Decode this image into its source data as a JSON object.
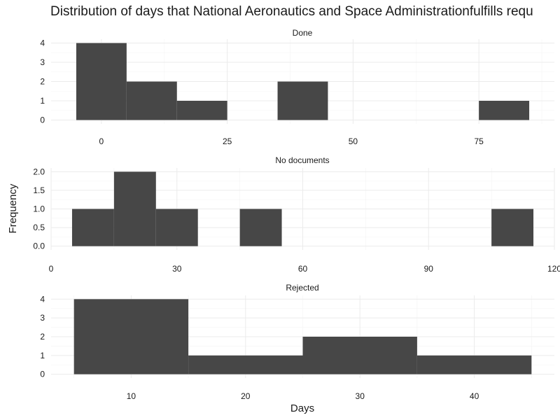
{
  "chart_data": {
    "type": "bar",
    "title": "Distribution of days that National Aeronautics and Space Administrationfulfills requ",
    "xlabel": "Days",
    "ylabel": "Frequency",
    "grid": true,
    "bar_color": "#474747",
    "panels": [
      {
        "name": "Done",
        "bin_width": 10,
        "bins": [
          {
            "x0": -5,
            "x1": 5,
            "count": 4
          },
          {
            "x0": 5,
            "x1": 15,
            "count": 2
          },
          {
            "x0": 15,
            "x1": 25,
            "count": 1
          },
          {
            "x0": 35,
            "x1": 45,
            "count": 2
          },
          {
            "x0": 75,
            "x1": 85,
            "count": 1
          }
        ],
        "xlim": [
          -10,
          90
        ],
        "ylim": [
          0,
          4
        ],
        "xticks": [
          0,
          25,
          50,
          75
        ],
        "yticks": [
          0,
          1,
          2,
          3,
          4
        ],
        "yticklabels": [
          "0",
          "1",
          "2",
          "3",
          "4"
        ]
      },
      {
        "name": "No documents",
        "bin_width": 10,
        "bins": [
          {
            "x0": 5,
            "x1": 15,
            "count": 1
          },
          {
            "x0": 15,
            "x1": 25,
            "count": 2
          },
          {
            "x0": 25,
            "x1": 35,
            "count": 1
          },
          {
            "x0": 45,
            "x1": 55,
            "count": 1
          },
          {
            "x0": 105,
            "x1": 115,
            "count": 1
          }
        ],
        "xlim": [
          0,
          120
        ],
        "ylim": [
          0,
          2
        ],
        "xticks": [
          0,
          30,
          60,
          90,
          120
        ],
        "yticks": [
          0,
          0.5,
          1,
          1.5,
          2
        ],
        "yticklabels": [
          "0.0",
          "0.5",
          "1.0",
          "1.5",
          "2.0"
        ]
      },
      {
        "name": "Rejected",
        "bin_width": 10,
        "bins": [
          {
            "x0": 5,
            "x1": 15,
            "count": 4
          },
          {
            "x0": 15,
            "x1": 25,
            "count": 1
          },
          {
            "x0": 25,
            "x1": 35,
            "count": 2
          },
          {
            "x0": 35,
            "x1": 45,
            "count": 1
          }
        ],
        "xlim": [
          3,
          47
        ],
        "ylim": [
          0,
          4
        ],
        "xticks": [
          10,
          20,
          30,
          40
        ],
        "yticks": [
          0,
          1,
          2,
          3,
          4
        ],
        "yticklabels": [
          "0",
          "1",
          "2",
          "3",
          "4"
        ]
      }
    ]
  }
}
